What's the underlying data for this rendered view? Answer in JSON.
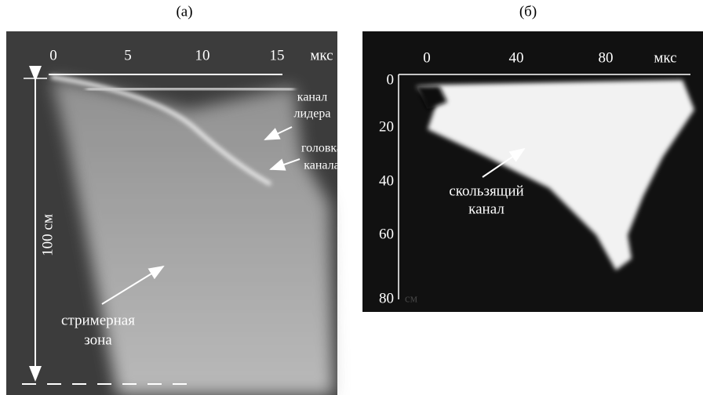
{
  "panels": [
    {
      "label": "(a)",
      "top_ticks": [
        "0",
        "5",
        "10",
        "15"
      ],
      "top_unit": "мкс",
      "scale_label": "100 см",
      "annotations": [
        {
          "lines": [
            "канал",
            "лидера"
          ]
        },
        {
          "lines": [
            "головка",
            "канала"
          ]
        },
        {
          "lines": [
            "стримерная",
            "зона"
          ]
        }
      ]
    },
    {
      "label": "(б)",
      "top_ticks": [
        "0",
        "40",
        "80"
      ],
      "top_unit": "мкс",
      "left_ticks": [
        "0",
        "20",
        "40",
        "60",
        "80"
      ],
      "left_unit": "см",
      "annotations": [
        {
          "lines": [
            "скользящий",
            "канал"
          ]
        }
      ]
    }
  ]
}
